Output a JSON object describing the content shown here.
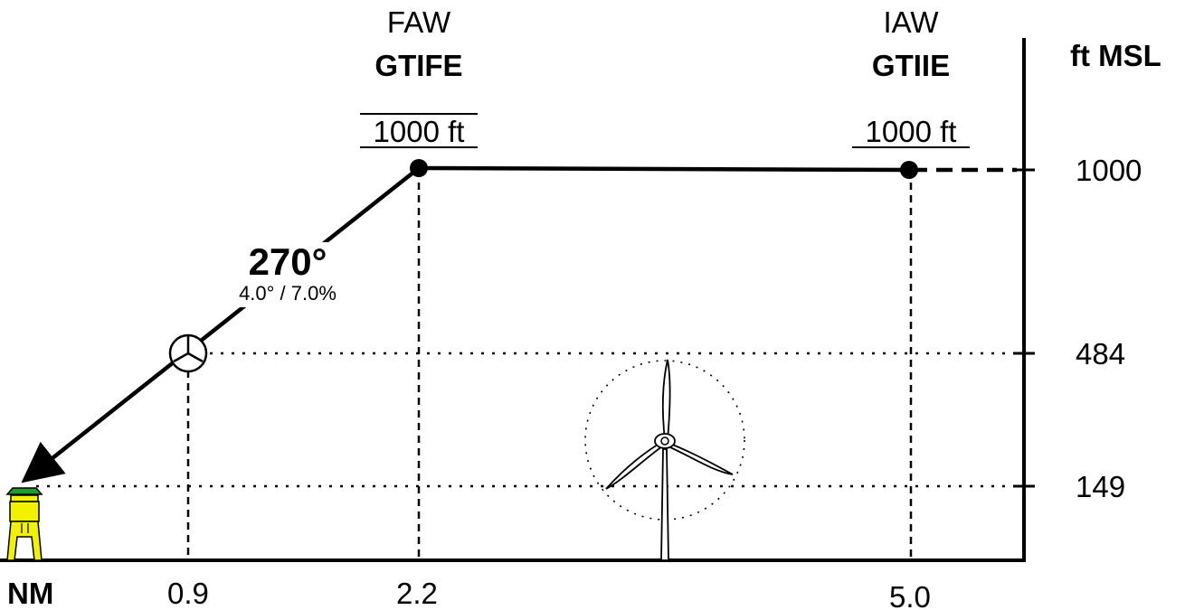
{
  "units": {
    "vertical": "ft MSL",
    "horizontal": "NM"
  },
  "altitude_ticks": [
    "1000",
    "484",
    "149"
  ],
  "distance_ticks": [
    "0.9",
    "2.2",
    "5.0"
  ],
  "waypoints": [
    {
      "role": "FAW",
      "name": "GTIFE",
      "altitude": "1000 ft",
      "distance_nm": 2.2,
      "altitude_ft": 1000
    },
    {
      "role": "IAW",
      "name": "GTIIE",
      "altitude": "1000 ft",
      "distance_nm": 5.0,
      "altitude_ft": 1000
    }
  ],
  "approach": {
    "course": "270°",
    "gradient": "4.0° / 7.0%"
  },
  "obstacle": {
    "type": "wind turbine",
    "distance_nm": 0.9,
    "altitude_ft": 484
  },
  "landing_site": {
    "type": "platform",
    "distance_nm": 0,
    "altitude_ft": 149
  },
  "colors": {
    "line": "#000000",
    "platform_fill": "#f2f200",
    "helideck": "#1e9e2e"
  }
}
